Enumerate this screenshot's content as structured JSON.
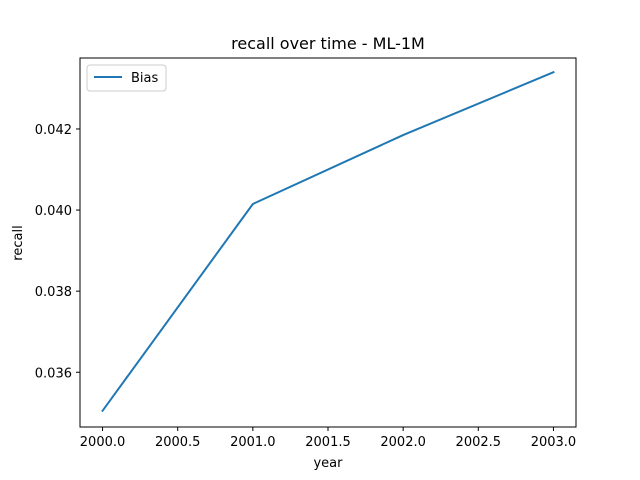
{
  "chart_data": {
    "type": "line",
    "title": "recall over time - ML-1M",
    "xlabel": "year",
    "ylabel": "recall",
    "xlim": [
      1999.85,
      2003.15
    ],
    "ylim": [
      0.03465,
      0.04375
    ],
    "xticks": [
      2000.0,
      2000.5,
      2001.0,
      2001.5,
      2002.0,
      2002.5,
      2003.0
    ],
    "xtick_labels": [
      "2000.0",
      "2000.5",
      "2001.0",
      "2001.5",
      "2002.0",
      "2002.5",
      "2003.0"
    ],
    "yticks": [
      0.036,
      0.038,
      0.04,
      0.042
    ],
    "ytick_labels": [
      "0.036",
      "0.038",
      "0.040",
      "0.042"
    ],
    "grid": false,
    "legend": "top-left",
    "series": [
      {
        "name": "Bias",
        "color": "#1f77b4",
        "x": [
          2000,
          2001,
          2002,
          2003
        ],
        "y": [
          0.03505,
          0.04015,
          0.04185,
          0.0434
        ]
      }
    ]
  }
}
